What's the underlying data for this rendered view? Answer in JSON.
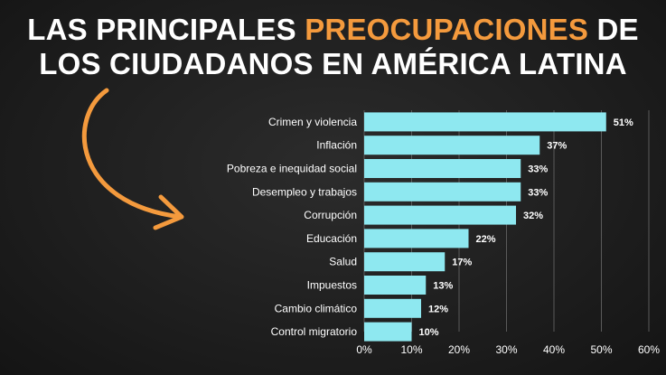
{
  "title": {
    "line1_pre": "LAS PRINCIPALES ",
    "line1_highlight": "PREOCUPACIONES",
    "line1_post": " DE",
    "line2": "LOS CIUDADANOS EN AMÉRICA LATINA"
  },
  "colors": {
    "bar": "#8ee8f0",
    "highlight": "#f49a3d",
    "arrow": "#f49a3d",
    "background": "#222222"
  },
  "chart_data": {
    "type": "bar",
    "orientation": "horizontal",
    "categories": [
      "Crimen y violencia",
      "Inflación",
      "Pobreza e inequidad social",
      "Desempleo y trabajos",
      "Corrupción",
      "Educación",
      "Salud",
      "Impuestos",
      "Cambio climático",
      "Control migratorio"
    ],
    "values": [
      51,
      37,
      33,
      33,
      32,
      22,
      17,
      13,
      12,
      10
    ],
    "value_labels": [
      "51%",
      "37%",
      "33%",
      "33%",
      "32%",
      "22%",
      "17%",
      "13%",
      "12%",
      "10%"
    ],
    "xlim": [
      0,
      60
    ],
    "xticks": [
      "0%",
      "10%",
      "20%",
      "30%",
      "40%",
      "50%",
      "60%"
    ],
    "grid": true
  }
}
